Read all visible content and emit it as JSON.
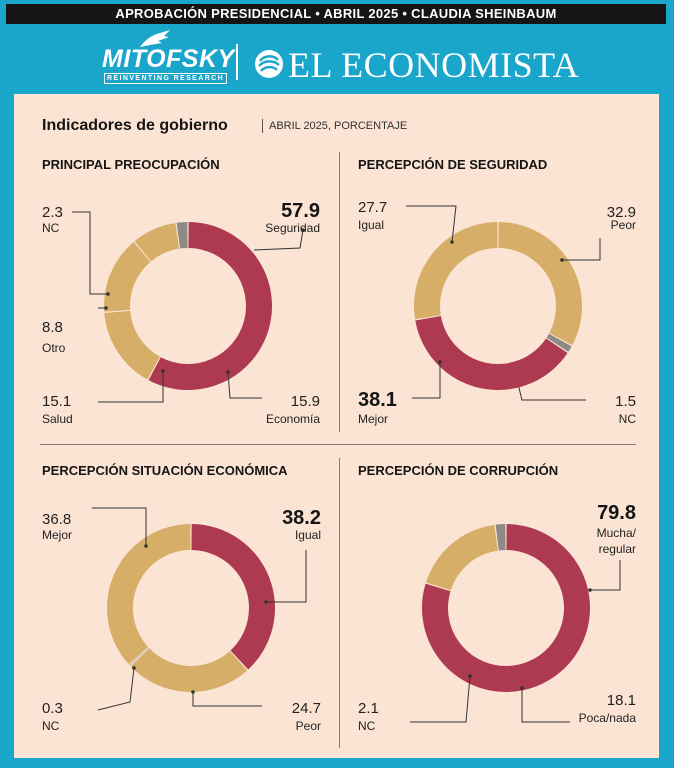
{
  "header": {
    "banner": "APROBACIÓN PRESIDENCIAL • ABRIL 2025 • CLAUDIA SHEINBAUM",
    "logo_left": "MITOFSKY",
    "logo_left_tagline": "REINVENTING RESEARCH",
    "logo_right": "EL ECONOMISTA"
  },
  "section": {
    "title": "Indicadores de gobierno",
    "subtitle": "ABRIL 2025, PORCENTAJE"
  },
  "colors": {
    "red": "#ad3a50",
    "tan": "#d7ae68",
    "gray": "#8f8a85",
    "background": "#fbe4d4",
    "frame": "#1aa6cb"
  },
  "chart_data": [
    {
      "type": "pie",
      "title": "PRINCIPAL PREOCUPACIÓN",
      "slices": [
        {
          "label": "Seguridad",
          "value": 57.9,
          "color": "#ad3a50",
          "highlight": true
        },
        {
          "label": "Economía",
          "value": 15.9,
          "color": "#d7ae68"
        },
        {
          "label": "Salud",
          "value": 15.1,
          "color": "#d7ae68"
        },
        {
          "label": "Otro",
          "value": 8.8,
          "color": "#d7ae68"
        },
        {
          "label": "NC",
          "value": 2.3,
          "color": "#8f8a85"
        }
      ]
    },
    {
      "type": "pie",
      "title": "PERCEPCIÓN DE SEGURIDAD",
      "slices": [
        {
          "label": "Peor",
          "value": 32.9,
          "color": "#d7ae68"
        },
        {
          "label": "NC",
          "value": 1.5,
          "color": "#8f8a85"
        },
        {
          "label": "Mejor",
          "value": 38.1,
          "color": "#ad3a50",
          "highlight": true
        },
        {
          "label": "Igual",
          "value": 27.7,
          "color": "#d7ae68"
        }
      ]
    },
    {
      "type": "pie",
      "title": "PERCEPCIÓN SITUACIÓN ECONÓMICA",
      "slices": [
        {
          "label": "Igual",
          "value": 38.2,
          "color": "#ad3a50",
          "highlight": true
        },
        {
          "label": "Peor",
          "value": 24.7,
          "color": "#d7ae68"
        },
        {
          "label": "NC",
          "value": 0.3,
          "color": "#8f8a85"
        },
        {
          "label": "Mejor",
          "value": 36.8,
          "color": "#d7ae68"
        }
      ]
    },
    {
      "type": "pie",
      "title": "PERCEPCIÓN DE CORRUPCIÓN",
      "slices": [
        {
          "label": "Mucha/ regular",
          "value": 79.8,
          "color": "#ad3a50",
          "highlight": true
        },
        {
          "label": "Poca/nada",
          "value": 18.1,
          "color": "#d7ae68"
        },
        {
          "label": "NC",
          "value": 2.1,
          "color": "#8f8a85"
        }
      ]
    }
  ]
}
